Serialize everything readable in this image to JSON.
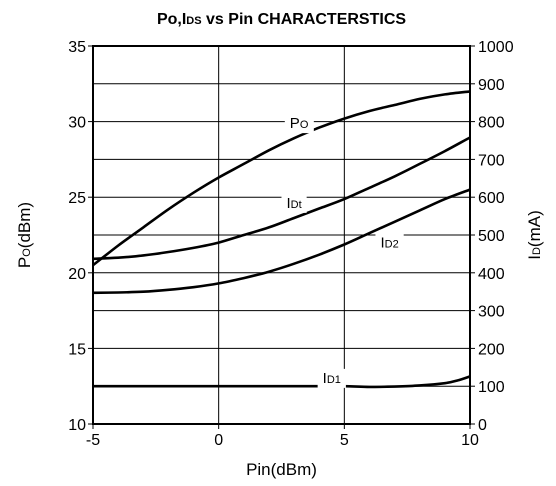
{
  "chart_data": {
    "type": "line",
    "title": {
      "main": "Po,I",
      "sub": "DS",
      "rest": " vs Pin CHARACTERSTICS"
    },
    "xlabel": "Pin(dBm)",
    "ylabel_left": {
      "main": "P",
      "sub": "O",
      "rest": "(dBm)"
    },
    "ylabel_right": {
      "main": "I",
      "sub": "D",
      "rest": "(mA)"
    },
    "xlim": [
      -5,
      10
    ],
    "ylim_left": [
      10,
      35
    ],
    "ylim_right": [
      0,
      1000
    ],
    "x_ticks": [
      {
        "value": -5,
        "label": "-5"
      },
      {
        "value": 0,
        "label": "0"
      },
      {
        "value": 5,
        "label": "5"
      },
      {
        "value": 10,
        "label": "10"
      }
    ],
    "y_left_ticks": [
      {
        "value": 10,
        "label": "10"
      },
      {
        "value": 15,
        "label": "15"
      },
      {
        "value": 20,
        "label": "20"
      },
      {
        "value": 25,
        "label": "25"
      },
      {
        "value": 30,
        "label": "30"
      },
      {
        "value": 35,
        "label": "35"
      }
    ],
    "y_right_ticks": [
      {
        "value": 0,
        "label": "0"
      },
      {
        "value": 100,
        "label": "100"
      },
      {
        "value": 200,
        "label": "200"
      },
      {
        "value": 300,
        "label": "300"
      },
      {
        "value": 400,
        "label": "400"
      },
      {
        "value": 500,
        "label": "500"
      },
      {
        "value": 600,
        "label": "600"
      },
      {
        "value": 700,
        "label": "700"
      },
      {
        "value": 800,
        "label": "800"
      },
      {
        "value": 900,
        "label": "900"
      },
      {
        "value": 1000,
        "label": "1000"
      }
    ],
    "grid": true,
    "series": [
      {
        "name_main": "P",
        "name_sub": "O",
        "axis": "left",
        "label_at": {
          "x": 3.2,
          "y": 29.9
        },
        "x": [
          -5,
          -4,
          -3,
          -2,
          -1,
          0,
          1,
          2,
          3,
          4,
          5,
          6,
          7,
          8,
          9,
          10
        ],
        "y": [
          20.5,
          21.8,
          23.0,
          24.2,
          25.3,
          26.3,
          27.2,
          28.1,
          28.9,
          29.6,
          30.2,
          30.7,
          31.1,
          31.5,
          31.8,
          32.0
        ]
      },
      {
        "name_main": "I",
        "name_sub": "Dt",
        "axis": "right",
        "label_at": {
          "x": 3.0,
          "y": 585
        },
        "x": [
          -5,
          -4,
          -3,
          -2,
          -1,
          0,
          1,
          2,
          3,
          4,
          5,
          6,
          7,
          8,
          9,
          10
        ],
        "y": [
          437,
          440,
          446,
          455,
          466,
          480,
          500,
          520,
          545,
          570,
          595,
          625,
          655,
          688,
          722,
          758
        ]
      },
      {
        "name_main": "I",
        "name_sub": "D2",
        "axis": "right",
        "label_at": {
          "x": 6.8,
          "y": 480
        },
        "x": [
          -5,
          -4,
          -3,
          -2,
          -1,
          0,
          1,
          2,
          3,
          4,
          5,
          6,
          7,
          8,
          9,
          10
        ],
        "y": [
          347,
          348,
          350,
          355,
          362,
          372,
          386,
          403,
          424,
          448,
          475,
          505,
          535,
          565,
          595,
          620
        ]
      },
      {
        "name_main": "I",
        "name_sub": "D1",
        "axis": "right",
        "label_at": {
          "x": 4.5,
          "y": 122
        },
        "x": [
          -5,
          -4,
          -3,
          -2,
          -1,
          0,
          1,
          2,
          3,
          4,
          5,
          6,
          7,
          8,
          9,
          9.5,
          10
        ],
        "y": [
          100,
          100,
          100,
          100,
          100,
          100,
          100,
          100,
          100,
          100,
          100,
          98,
          99,
          102,
          108,
          115,
          126
        ]
      }
    ]
  }
}
